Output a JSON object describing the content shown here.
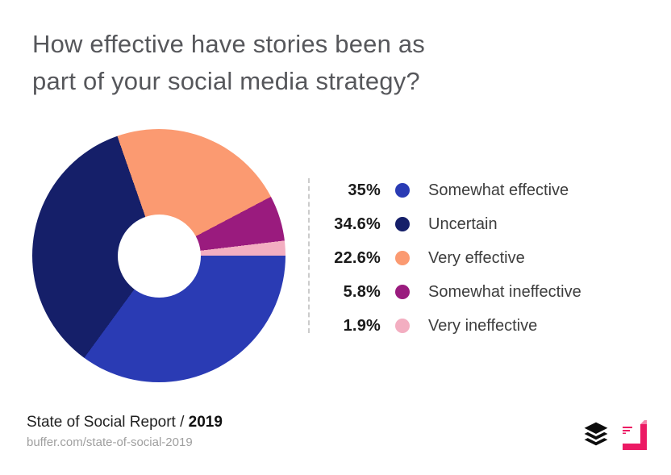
{
  "title": "How effective have stories been as\npart of your social media strategy?",
  "chart_data": {
    "type": "pie",
    "variant": "donut",
    "title": "How effective have stories been as part of your social media strategy?",
    "segments": [
      {
        "label": "Somewhat effective",
        "value": 35,
        "display": "35%",
        "color": "#2a3bb4"
      },
      {
        "label": "Uncertain",
        "value": 34.6,
        "display": "34.6%",
        "color": "#151f69"
      },
      {
        "label": "Very effective",
        "value": 22.6,
        "display": "22.6%",
        "color": "#fb9a71"
      },
      {
        "label": "Somewhat ineffective",
        "value": 5.8,
        "display": "5.8%",
        "color": "#9a1b7e"
      },
      {
        "label": "Very ineffective",
        "value": 1.9,
        "display": "1.9%",
        "color": "#f3aec1"
      }
    ],
    "start_angle": "3-oclock",
    "direction": "clockwise",
    "hole_ratio": 0.33,
    "legend_position": "right",
    "legend_divider": "vertical-dashed"
  },
  "footer": {
    "report_label": "State of Social Report / ",
    "report_year": "2019",
    "url": "buffer.com/state-of-social-2019"
  },
  "branding": {
    "icons": [
      {
        "name": "buffer-layers-icon",
        "color": "#0d0d0d"
      },
      {
        "name": "partner-corner-logo-icon",
        "color": "#ec1a64",
        "accent": "#f584ab"
      }
    ]
  }
}
